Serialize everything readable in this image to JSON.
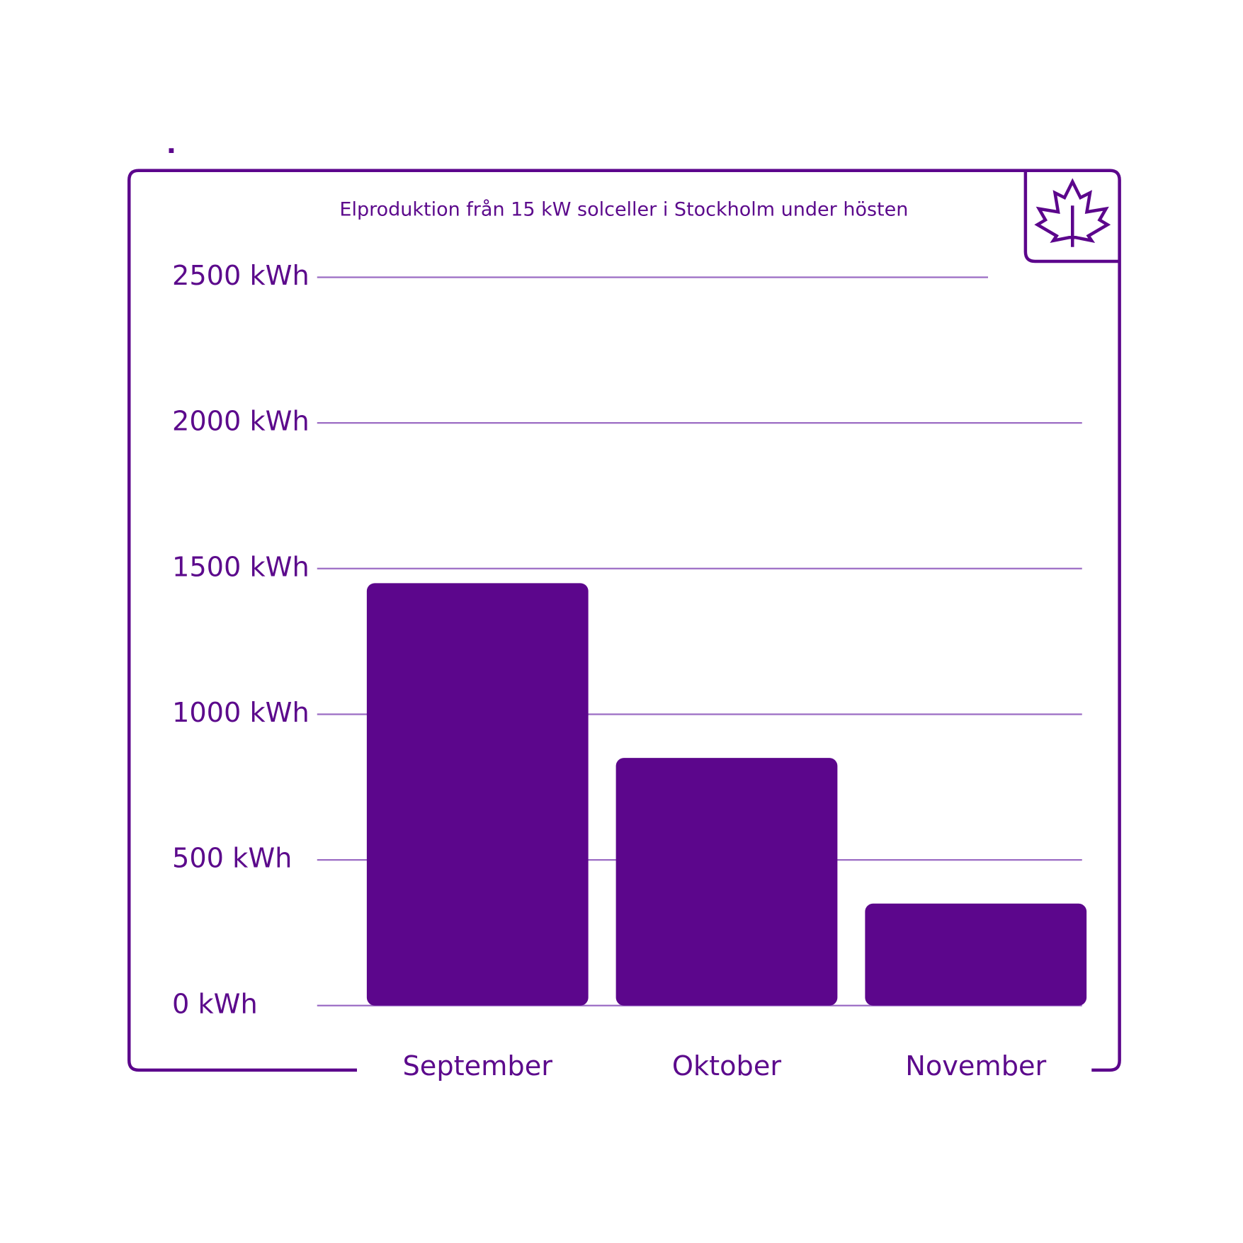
{
  "chart_data": {
    "type": "bar",
    "title": "Elproduktion från 15 kW solceller i Stockholm under hösten",
    "categories": [
      "September",
      "Oktober",
      "November"
    ],
    "values": [
      1450,
      850,
      350
    ],
    "color": "#5c068c",
    "ylim": [
      0,
      2500
    ],
    "yticks": [
      {
        "value": 0,
        "label": "0 kWh"
      },
      {
        "value": 500,
        "label": "500 kWh"
      },
      {
        "value": 1000,
        "label": "1000 kWh"
      },
      {
        "value": 1500,
        "label": "1500 kWh"
      },
      {
        "value": 2000,
        "label": "2000 kWh"
      },
      {
        "value": 2500,
        "label": "2500 kWh"
      }
    ],
    "grid": true
  }
}
